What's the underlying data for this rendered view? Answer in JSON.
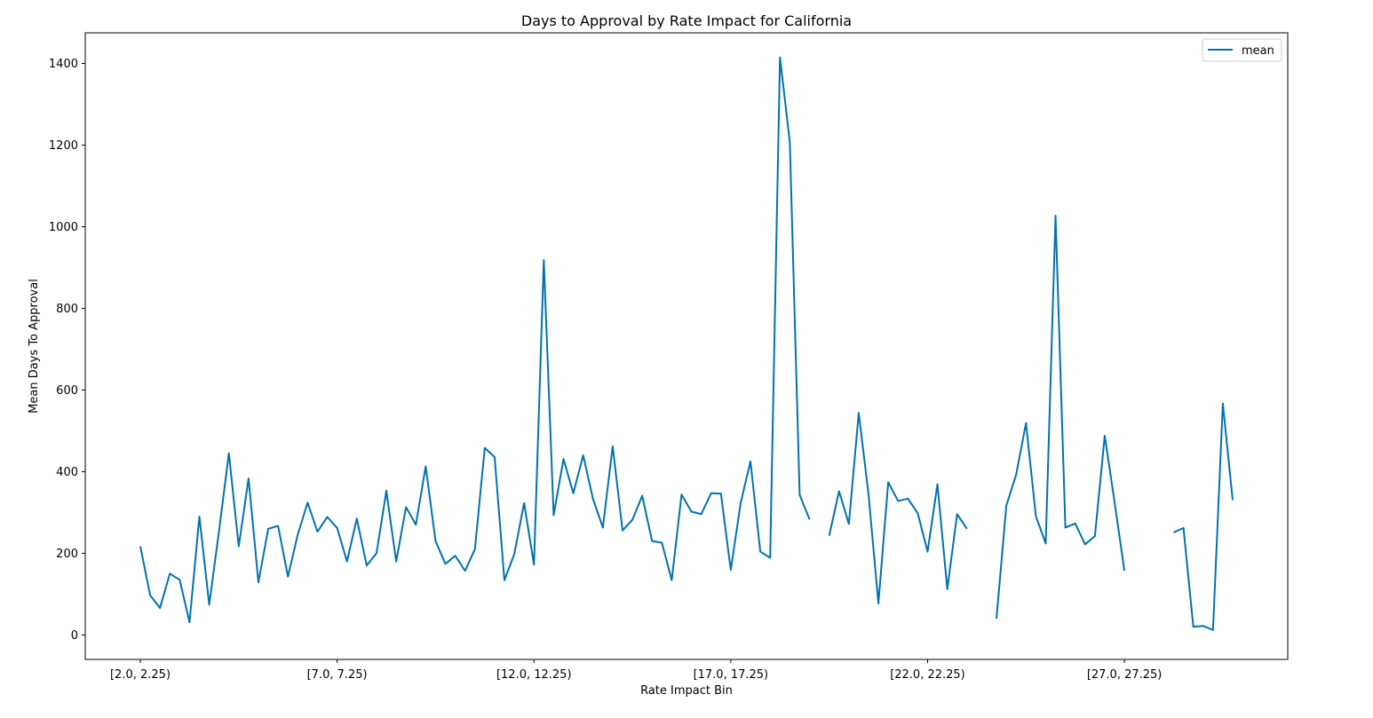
{
  "chart_data": {
    "type": "line",
    "title": "Days to Approval by Rate Impact for California",
    "xlabel": "Rate Impact Bin",
    "ylabel": "Mean Days To Approval",
    "ylim": [
      -60,
      1475
    ],
    "yticks": [
      0,
      200,
      400,
      600,
      800,
      1000,
      1200,
      1400
    ],
    "xtick_labels": [
      "[2.0, 2.25)",
      "[7.0, 7.25)",
      "[12.0, 12.25)",
      "[17.0, 17.25)",
      "[22.0, 22.25)",
      "[27.0, 27.25)"
    ],
    "xtick_indices": [
      0,
      20,
      40,
      60,
      80,
      100
    ],
    "x_count": 112,
    "grid": false,
    "legend_position": "upper right",
    "colors": {
      "line": "#0072b2",
      "axes": "#000000",
      "background": "#ffffff"
    },
    "series": [
      {
        "name": "mean",
        "values": [
          217,
          97,
          66,
          150,
          135,
          31,
          290,
          74,
          255,
          445,
          217,
          383,
          129,
          260,
          267,
          143,
          246,
          324,
          253,
          289,
          262,
          180,
          285,
          170,
          200,
          353,
          180,
          313,
          270,
          413,
          230,
          174,
          194,
          157,
          210,
          458,
          436,
          134,
          198,
          323,
          172,
          918,
          293,
          431,
          347,
          440,
          333,
          263,
          462,
          256,
          282,
          341,
          230,
          226,
          134,
          344,
          302,
          296,
          347,
          346,
          159,
          323,
          425,
          204,
          189,
          1415,
          1207,
          343,
          283,
          null,
          243,
          352,
          272,
          544,
          344,
          77,
          374,
          328,
          334,
          298,
          204,
          369,
          112,
          296,
          260,
          null,
          null,
          40,
          317,
          393,
          519,
          291,
          224,
          1027,
          263,
          273,
          222,
          242,
          488,
          325,
          157,
          null,
          null,
          null,
          null,
          251,
          262,
          20,
          22,
          12,
          567,
          330
        ]
      }
    ]
  }
}
